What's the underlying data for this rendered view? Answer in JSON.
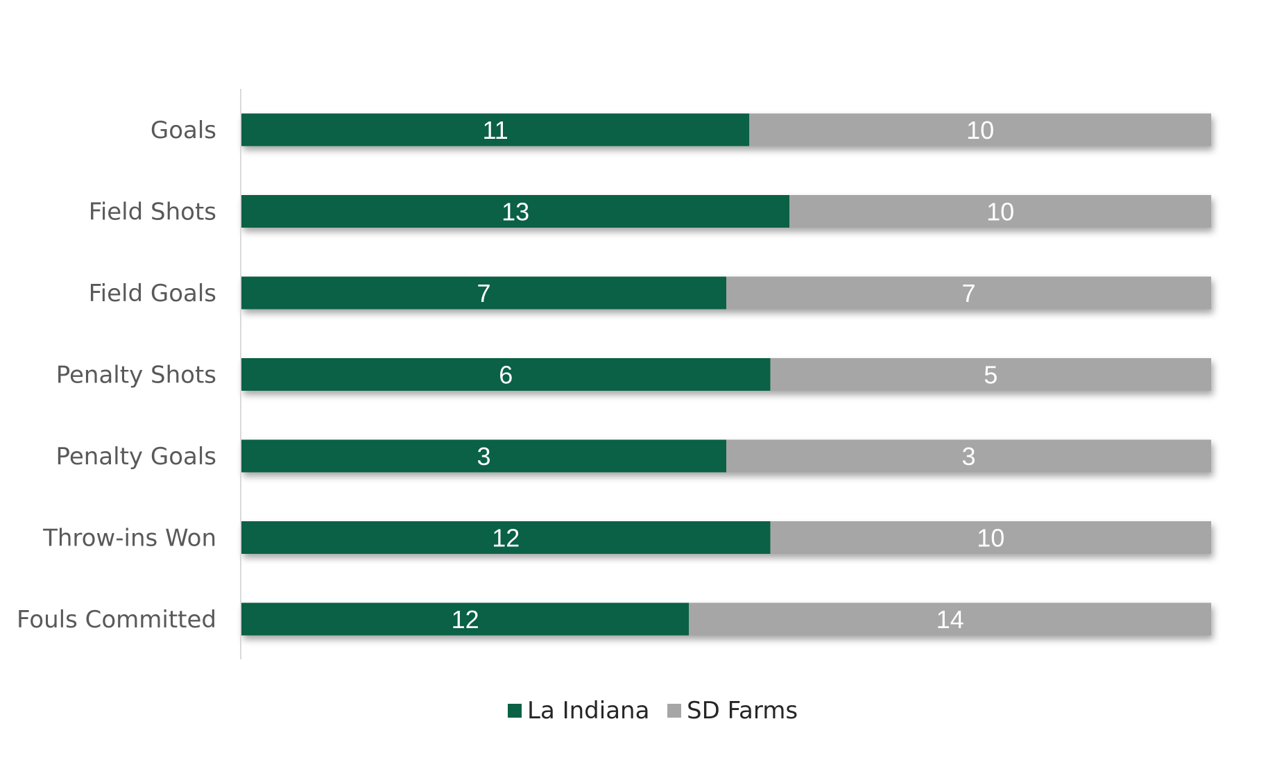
{
  "chart_data": {
    "type": "bar",
    "orientation": "horizontal",
    "stacked": "100%",
    "categories": [
      "Goals",
      "Field Shots",
      "Field Goals",
      "Penalty Shots",
      "Penalty Goals",
      "Throw-ins Won",
      "Fouls Committed"
    ],
    "series": [
      {
        "name": "La Indiana",
        "values": [
          11,
          13,
          7,
          6,
          3,
          12,
          12
        ],
        "color": "#0a6145"
      },
      {
        "name": "SD Farms",
        "values": [
          10,
          10,
          7,
          5,
          3,
          10,
          14
        ],
        "color": "#a6a6a6"
      }
    ],
    "title": "",
    "xlabel": "",
    "ylabel": "",
    "grid": false,
    "legend": "bottom"
  }
}
